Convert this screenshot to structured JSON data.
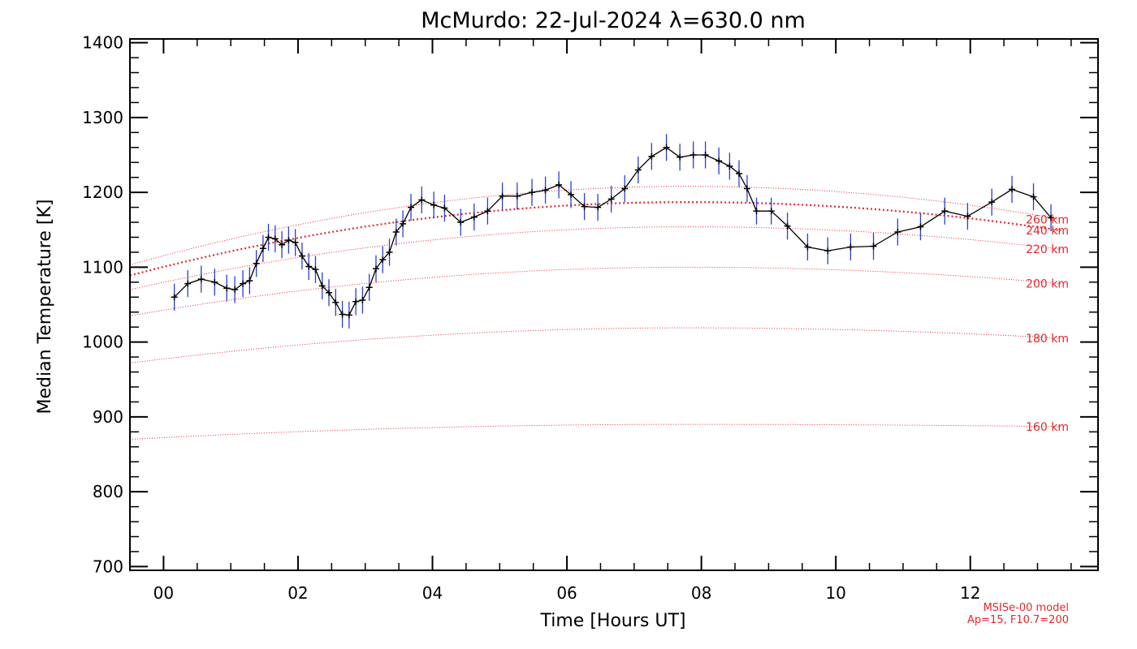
{
  "chart_data": {
    "type": "line",
    "title": "McMurdo: 22-Jul-2024 λ=630.0 nm",
    "xlabel": "Time [Hours UT]",
    "ylabel": "Median Temperature [K]",
    "xlim": [
      -0.5,
      13.9
    ],
    "ylim": [
      695,
      1405
    ],
    "x_tick_labels": [
      "00",
      "02",
      "04",
      "06",
      "08",
      "10",
      "12"
    ],
    "x_tick_values": [
      0,
      2,
      4,
      6,
      8,
      10,
      12
    ],
    "y_tick_values": [
      700,
      800,
      900,
      1000,
      1100,
      1200,
      1300,
      1400
    ],
    "y_tick_labels": [
      "700",
      "800",
      "900",
      "1000",
      "1100",
      "1200",
      "1300",
      "1400"
    ],
    "grid": false,
    "series": [
      {
        "color": "#000000",
        "errorbar_color": "#2a3fd6",
        "x": [
          0.16,
          0.36,
          0.56,
          0.76,
          0.94,
          1.06,
          1.18,
          1.28,
          1.38,
          1.48,
          1.56,
          1.66,
          1.76,
          1.86,
          1.96,
          2.06,
          2.16,
          2.26,
          2.36,
          2.46,
          2.56,
          2.66,
          2.76,
          2.86,
          2.96,
          3.06,
          3.16,
          3.26,
          3.36,
          3.46,
          3.56,
          3.68,
          3.84,
          4.02,
          4.18,
          4.42,
          4.62,
          4.82,
          5.04,
          5.26,
          5.48,
          5.68,
          5.88,
          6.06,
          6.26,
          6.46,
          6.66,
          6.86,
          7.06,
          7.26,
          7.48,
          7.68,
          7.88,
          8.06,
          8.26,
          8.42,
          8.56,
          8.68,
          8.82,
          9.04,
          9.28,
          9.58,
          9.88,
          10.22,
          10.56,
          10.92,
          11.26,
          11.62,
          11.96,
          12.32,
          12.62,
          12.94,
          13.2
        ],
        "y": [
          1060,
          1078,
          1084,
          1080,
          1072,
          1070,
          1078,
          1082,
          1105,
          1125,
          1140,
          1138,
          1130,
          1136,
          1133,
          1115,
          1101,
          1097,
          1075,
          1066,
          1053,
          1037,
          1036,
          1054,
          1056,
          1073,
          1098,
          1110,
          1120,
          1147,
          1158,
          1180,
          1190,
          1183,
          1179,
          1160,
          1167,
          1175,
          1195,
          1195,
          1200,
          1203,
          1210,
          1197,
          1181,
          1180,
          1191,
          1205,
          1230,
          1248,
          1260,
          1247,
          1250,
          1250,
          1242,
          1235,
          1225,
          1205,
          1175,
          1175,
          1155,
          1127,
          1122,
          1127,
          1128,
          1147,
          1154,
          1175,
          1168,
          1187,
          1204,
          1194,
          1166
        ],
        "yerr": 18
      }
    ],
    "model_curves": [
      {
        "label": "160 km",
        "y0": 870,
        "ypeak": 890,
        "yend": 887
      },
      {
        "label": "180 km",
        "y0": 972,
        "ypeak": 1019,
        "yend": 1005
      },
      {
        "label": "200 km",
        "y0": 1035,
        "ypeak": 1100,
        "yend": 1078
      },
      {
        "label": "220 km",
        "y0": 1070,
        "ypeak": 1154,
        "yend": 1124
      },
      {
        "label": "240 km",
        "y0": 1089,
        "ypeak": 1187,
        "yend": 1149,
        "bold": true
      },
      {
        "label": "260 km",
        "y0": 1103,
        "ypeak": 1208,
        "yend": 1164
      }
    ],
    "model_note": [
      "MSISe-00 model",
      "Ap=15, F10.7=200"
    ],
    "colors": {
      "data_line": "#000000",
      "errorbar": "#2a3fd6",
      "model": "#e8262b"
    }
  }
}
